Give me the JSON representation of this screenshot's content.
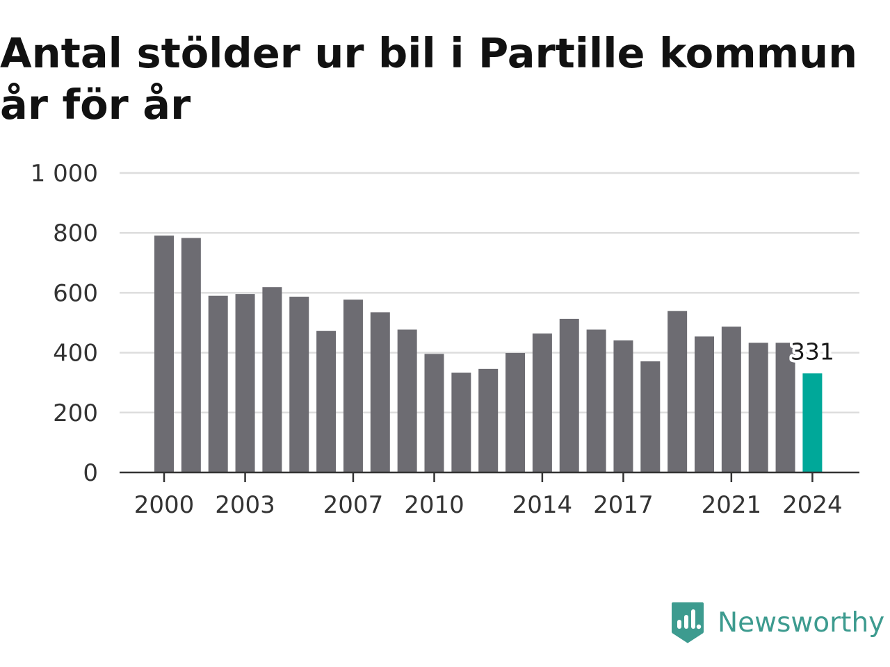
{
  "chart_data": {
    "type": "bar",
    "title": "Antal stölder ur bil i Partille kommun år för år",
    "xlabel": "",
    "ylabel": "",
    "categories": [
      "2000",
      "2001",
      "2002",
      "2003",
      "2004",
      "2005",
      "2006",
      "2007",
      "2008",
      "2009",
      "2010",
      "2011",
      "2012",
      "2013",
      "2014",
      "2015",
      "2016",
      "2017",
      "2018",
      "2019",
      "2020",
      "2021",
      "2022",
      "2023",
      "2024"
    ],
    "values": [
      791,
      783,
      590,
      596,
      619,
      587,
      473,
      577,
      535,
      477,
      396,
      333,
      346,
      399,
      464,
      513,
      477,
      441,
      371,
      539,
      454,
      487,
      433,
      433,
      331
    ],
    "ylim": [
      0,
      1000
    ],
    "yticks": [
      0,
      200,
      400,
      600,
      800,
      1000
    ],
    "ytick_labels": [
      "0",
      "200",
      "400",
      "600",
      "800",
      "1 000"
    ],
    "xtick_labels": [
      "2000",
      "2003",
      "2007",
      "2010",
      "2014",
      "2017",
      "2021",
      "2024"
    ],
    "highlight_index": 24,
    "highlight_label": "331",
    "grid": true,
    "legend": "none",
    "colors": {
      "bar": "#6d6c72",
      "highlight": "#00a899",
      "grid": "#dddddd",
      "axis": "#333333"
    }
  },
  "brand": {
    "name": "Newsworthy",
    "icon": "newsworthy-logo-icon",
    "color": "#3d9b8f"
  }
}
